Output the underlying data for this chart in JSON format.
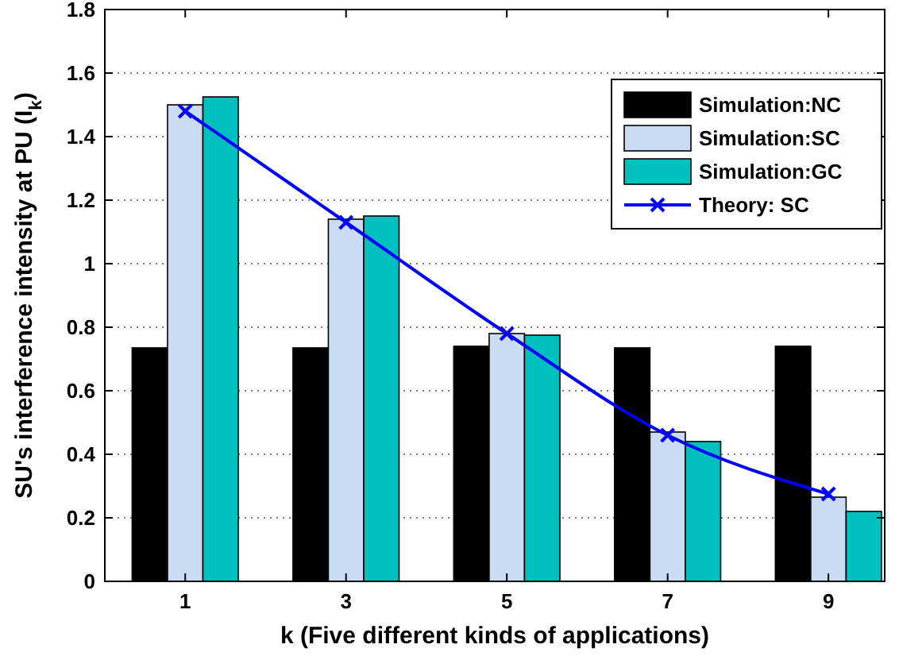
{
  "chart_data": {
    "type": "bar",
    "xlabel": "k (Five different kinds of applications)",
    "ylabel": "SU's interference intensity at PU (I$_{k}$)",
    "x": [
      1,
      3,
      5,
      7,
      9
    ],
    "xlim": [
      0,
      9.7
    ],
    "xticks": [
      1,
      3,
      5,
      7,
      9
    ],
    "ylim": [
      0,
      1.8
    ],
    "yticks": [
      0,
      0.2,
      0.4,
      0.6,
      0.8,
      1,
      1.2,
      1.4,
      1.6,
      1.8
    ],
    "grid": "y",
    "legend": "top right",
    "series": [
      {
        "name": "Simulation:NC",
        "color": "#000000",
        "values": [
          0.735,
          0.735,
          0.74,
          0.735,
          0.74
        ]
      },
      {
        "name": "Simulation:SC",
        "color": "#cadcf4",
        "values": [
          1.5,
          1.14,
          0.78,
          0.47,
          0.265
        ]
      },
      {
        "name": "Simulation:GC",
        "color": "#00bfbf",
        "values": [
          1.525,
          1.15,
          0.775,
          0.44,
          0.22
        ]
      },
      {
        "name": "Theory: SC",
        "type": "line",
        "color": "#0000ff",
        "marker": "cross",
        "line_style": "solid",
        "values": [
          1.48,
          1.13,
          0.78,
          0.46,
          0.275
        ]
      }
    ]
  }
}
